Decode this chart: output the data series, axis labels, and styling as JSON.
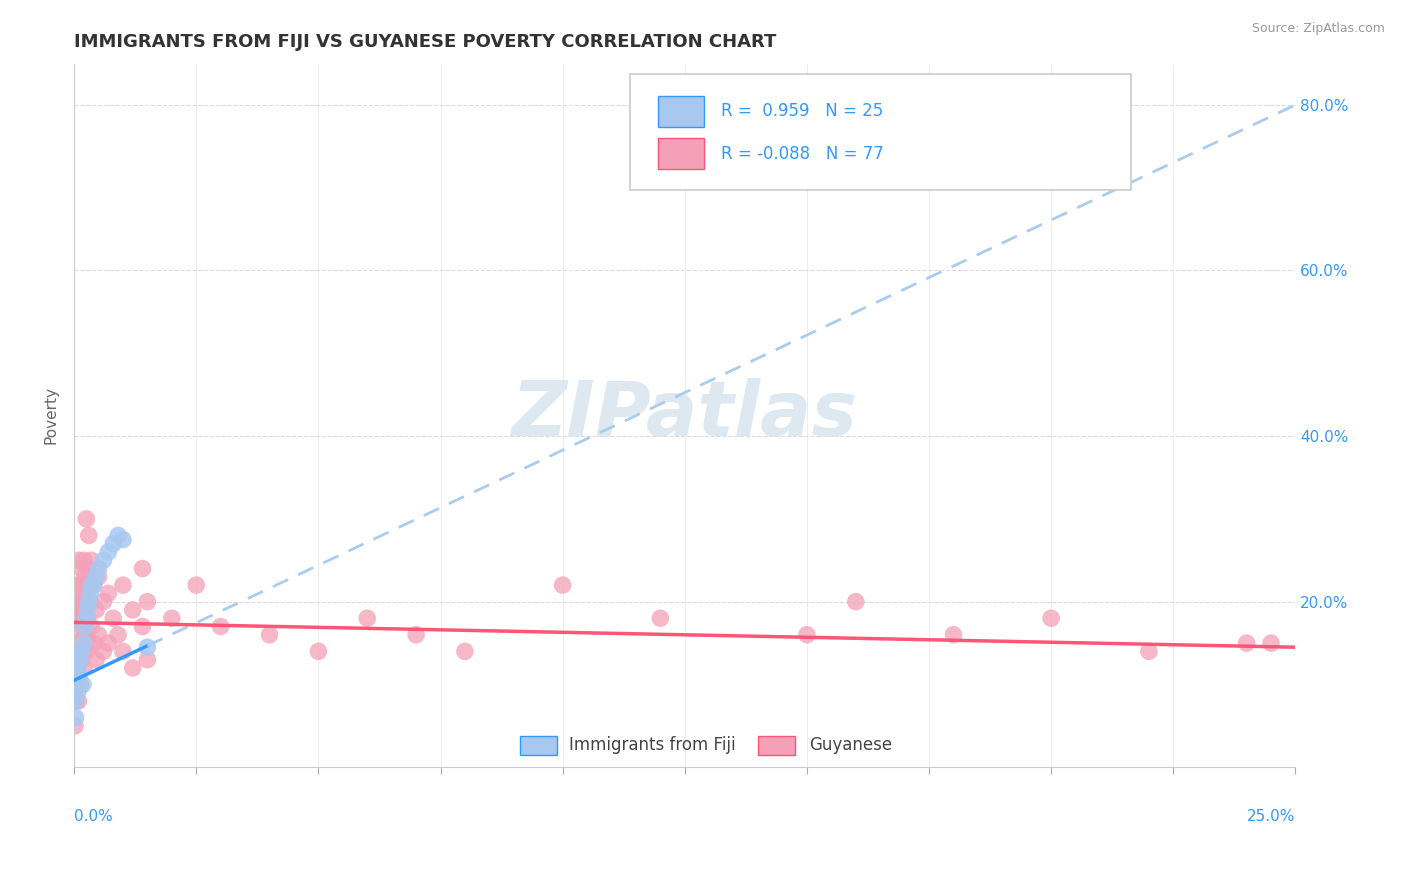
{
  "title": "IMMIGRANTS FROM FIJI VS GUYANESE POVERTY CORRELATION CHART",
  "source": "Source: ZipAtlas.com",
  "ylabel": "Poverty",
  "fiji_R": 0.959,
  "fiji_N": 25,
  "guyanese_R": -0.088,
  "guyanese_N": 77,
  "fiji_color": "#a8c8f0",
  "fiji_line_color": "#3399ff",
  "guyanese_color": "#f4a0b8",
  "guyanese_line_color": "#ff5577",
  "dashed_extension_color": "#aaccee",
  "watermark_color": "#dde8f0",
  "background_color": "#ffffff",
  "grid_color": "#cccccc",
  "fiji_line_intercept": 0.105,
  "fiji_line_slope": 2.78,
  "guyanese_line_intercept": 0.175,
  "guyanese_line_slope": -0.12,
  "fiji_scatter": [
    [
      0.0002,
      0.08
    ],
    [
      0.0003,
      0.06
    ],
    [
      0.0005,
      0.1
    ],
    [
      0.0007,
      0.09
    ],
    [
      0.0008,
      0.12
    ],
    [
      0.001,
      0.11
    ],
    [
      0.0012,
      0.13
    ],
    [
      0.0015,
      0.14
    ],
    [
      0.0018,
      0.1
    ],
    [
      0.002,
      0.15
    ],
    [
      0.0022,
      0.17
    ],
    [
      0.0025,
      0.18
    ],
    [
      0.0028,
      0.19
    ],
    [
      0.003,
      0.2
    ],
    [
      0.0033,
      0.21
    ],
    [
      0.0035,
      0.22
    ],
    [
      0.004,
      0.22
    ],
    [
      0.0045,
      0.23
    ],
    [
      0.005,
      0.24
    ],
    [
      0.006,
      0.25
    ],
    [
      0.007,
      0.26
    ],
    [
      0.008,
      0.27
    ],
    [
      0.009,
      0.28
    ],
    [
      0.01,
      0.275
    ],
    [
      0.015,
      0.145
    ]
  ],
  "guyanese_scatter": [
    [
      0.0002,
      0.05
    ],
    [
      0.0003,
      0.08
    ],
    [
      0.0004,
      0.15
    ],
    [
      0.0005,
      0.22
    ],
    [
      0.0005,
      0.1
    ],
    [
      0.0006,
      0.18
    ],
    [
      0.0007,
      0.12
    ],
    [
      0.0008,
      0.2
    ],
    [
      0.0008,
      0.14
    ],
    [
      0.0009,
      0.08
    ],
    [
      0.001,
      0.25
    ],
    [
      0.001,
      0.18
    ],
    [
      0.001,
      0.13
    ],
    [
      0.0012,
      0.22
    ],
    [
      0.0012,
      0.16
    ],
    [
      0.0013,
      0.2
    ],
    [
      0.0013,
      0.1
    ],
    [
      0.0015,
      0.24
    ],
    [
      0.0015,
      0.18
    ],
    [
      0.0015,
      0.13
    ],
    [
      0.0016,
      0.2
    ],
    [
      0.0017,
      0.14
    ],
    [
      0.0018,
      0.22
    ],
    [
      0.0018,
      0.17
    ],
    [
      0.002,
      0.25
    ],
    [
      0.002,
      0.19
    ],
    [
      0.002,
      0.12
    ],
    [
      0.0022,
      0.23
    ],
    [
      0.0022,
      0.16
    ],
    [
      0.0025,
      0.3
    ],
    [
      0.0025,
      0.2
    ],
    [
      0.0025,
      0.14
    ],
    [
      0.0028,
      0.24
    ],
    [
      0.0028,
      0.18
    ],
    [
      0.003,
      0.28
    ],
    [
      0.003,
      0.22
    ],
    [
      0.003,
      0.15
    ],
    [
      0.0033,
      0.2
    ],
    [
      0.0035,
      0.25
    ],
    [
      0.0035,
      0.17
    ],
    [
      0.004,
      0.22
    ],
    [
      0.004,
      0.15
    ],
    [
      0.0045,
      0.19
    ],
    [
      0.0045,
      0.13
    ],
    [
      0.005,
      0.23
    ],
    [
      0.005,
      0.16
    ],
    [
      0.006,
      0.2
    ],
    [
      0.006,
      0.14
    ],
    [
      0.007,
      0.21
    ],
    [
      0.007,
      0.15
    ],
    [
      0.008,
      0.18
    ],
    [
      0.009,
      0.16
    ],
    [
      0.01,
      0.22
    ],
    [
      0.01,
      0.14
    ],
    [
      0.012,
      0.19
    ],
    [
      0.012,
      0.12
    ],
    [
      0.014,
      0.24
    ],
    [
      0.014,
      0.17
    ],
    [
      0.015,
      0.2
    ],
    [
      0.015,
      0.13
    ],
    [
      0.02,
      0.18
    ],
    [
      0.025,
      0.22
    ],
    [
      0.03,
      0.17
    ],
    [
      0.04,
      0.16
    ],
    [
      0.05,
      0.14
    ],
    [
      0.06,
      0.18
    ],
    [
      0.07,
      0.16
    ],
    [
      0.08,
      0.14
    ],
    [
      0.1,
      0.22
    ],
    [
      0.12,
      0.18
    ],
    [
      0.15,
      0.16
    ],
    [
      0.16,
      0.2
    ],
    [
      0.18,
      0.16
    ],
    [
      0.2,
      0.18
    ],
    [
      0.22,
      0.14
    ],
    [
      0.24,
      0.15
    ],
    [
      0.245,
      0.15
    ]
  ],
  "xlim": [
    0.0,
    0.25
  ],
  "ylim": [
    0.0,
    0.85
  ],
  "yticks": [
    0.0,
    0.2,
    0.4,
    0.6,
    0.8
  ],
  "ytick_labels": [
    "",
    "20.0%",
    "40.0%",
    "60.0%",
    "80.0%"
  ],
  "title_fontsize": 13,
  "axis_label_fontsize": 11,
  "tick_fontsize": 11,
  "legend_fontsize": 12
}
